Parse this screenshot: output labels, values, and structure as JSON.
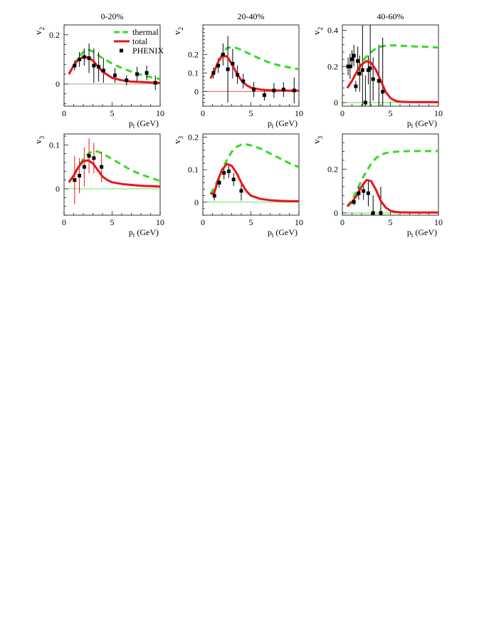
{
  "colors": {
    "thermal": "#33dd22",
    "total": "#e8141a",
    "phenix": "#000000",
    "zero_line": "#888888",
    "errbar_red": "#ee4444"
  },
  "legend": {
    "thermal": "thermal",
    "total": "total",
    "phenix": "PHENIX"
  },
  "chart_data": [
    {
      "type": "line",
      "title": "0-20%",
      "ylabel": "v2",
      "xlabel": "pt (GeV)",
      "xlim": [
        0,
        10
      ],
      "ylim": [
        -0.09,
        0.24
      ],
      "xticks": [
        0,
        5,
        10
      ],
      "yticks": [
        0,
        0.2
      ],
      "ytick_labels": [
        "0",
        "0.2"
      ],
      "zero_line_color": "#888888",
      "errbar_color": "#000000",
      "legend": true,
      "thermal": {
        "x": [
          0.5,
          1,
          1.5,
          2,
          2.5,
          3,
          4,
          5,
          6,
          7,
          8,
          9,
          10
        ],
        "y": [
          0.04,
          0.075,
          0.11,
          0.13,
          0.14,
          0.132,
          0.105,
          0.083,
          0.065,
          0.05,
          0.038,
          0.028,
          0.02
        ]
      },
      "total": {
        "x": [
          0.5,
          1,
          1.5,
          2,
          2.5,
          3,
          3.5,
          4,
          5,
          6,
          7,
          8,
          9,
          10
        ],
        "y": [
          0.04,
          0.075,
          0.1,
          0.11,
          0.108,
          0.095,
          0.072,
          0.05,
          0.025,
          0.015,
          0.01,
          0.008,
          0.006,
          0.005
        ]
      },
      "phenix": {
        "x": [
          1.1,
          1.6,
          2.1,
          2.6,
          3.1,
          3.6,
          4.1,
          5.3,
          6.5,
          7.6,
          8.6,
          9.5
        ],
        "y": [
          0.075,
          0.1,
          0.11,
          0.105,
          0.075,
          0.07,
          0.055,
          0.035,
          0.015,
          0.04,
          0.045,
          0.005
        ],
        "err": [
          0.02,
          0.03,
          0.035,
          0.06,
          0.07,
          0.06,
          0.05,
          0.03,
          0.02,
          0.03,
          0.03,
          0.03
        ]
      }
    },
    {
      "type": "line",
      "title": "20-40%",
      "ylabel": "v2",
      "xlabel": "pt (GeV)",
      "xlim": [
        0,
        10
      ],
      "ylim": [
        -0.08,
        0.36
      ],
      "xticks": [
        0,
        5,
        10
      ],
      "yticks": [
        0,
        0.1,
        0.2
      ],
      "ytick_labels": [
        "0",
        "0.1",
        "0.2"
      ],
      "zero_line_color": "#e8141a",
      "errbar_color": "#000000",
      "legend": false,
      "thermal": {
        "x": [
          0.8,
          1.2,
          1.6,
          2,
          2.5,
          3,
          3.5,
          4,
          5,
          6,
          7,
          8,
          9,
          10
        ],
        "y": [
          0.07,
          0.11,
          0.16,
          0.2,
          0.235,
          0.24,
          0.235,
          0.225,
          0.2,
          0.175,
          0.155,
          0.14,
          0.13,
          0.12
        ]
      },
      "total": {
        "x": [
          0.8,
          1.2,
          1.6,
          2,
          2.5,
          3,
          3.5,
          4,
          4.5,
          5,
          6,
          7,
          8,
          9,
          10
        ],
        "y": [
          0.07,
          0.11,
          0.16,
          0.19,
          0.19,
          0.15,
          0.1,
          0.06,
          0.035,
          0.02,
          0.01,
          0.006,
          0.005,
          0.004,
          0.004
        ]
      },
      "phenix": {
        "x": [
          1.1,
          1.6,
          2.1,
          2.6,
          3.1,
          3.6,
          4.2,
          5.3,
          6.4,
          7.4,
          8.4,
          9.5
        ],
        "y": [
          0.1,
          0.14,
          0.2,
          0.12,
          0.15,
          0.09,
          0.055,
          0.01,
          -0.02,
          0.005,
          0.01,
          0.005
        ],
        "err": [
          0.03,
          0.04,
          0.06,
          0.18,
          0.08,
          0.05,
          0.04,
          0.04,
          0.03,
          0.04,
          0.04,
          0.07
        ]
      }
    },
    {
      "type": "line",
      "title": "40-60%",
      "ylabel": "v2",
      "xlabel": "pt (GeV)",
      "xlim": [
        0,
        10
      ],
      "ylim": [
        -0.02,
        0.43
      ],
      "xticks": [
        0,
        5,
        10
      ],
      "yticks": [
        0,
        0.2,
        0.4
      ],
      "ytick_labels": [
        "0",
        "0.2",
        "0.4"
      ],
      "zero_line_color": "#33dd22",
      "errbar_color": "#000000",
      "legend": false,
      "thermal": {
        "x": [
          0.5,
          1,
          1.5,
          2,
          2.5,
          3,
          3.5,
          4,
          4.5,
          5,
          6,
          7,
          8,
          9,
          10
        ],
        "y": [
          0.08,
          0.12,
          0.17,
          0.22,
          0.255,
          0.28,
          0.3,
          0.31,
          0.315,
          0.317,
          0.315,
          0.312,
          0.31,
          0.308,
          0.305
        ]
      },
      "total": {
        "x": [
          0.5,
          1,
          1.5,
          2,
          2.5,
          3,
          3.5,
          4,
          4.5,
          5,
          5.5,
          6,
          7,
          8,
          9,
          10
        ],
        "y": [
          0.08,
          0.12,
          0.17,
          0.21,
          0.23,
          0.22,
          0.18,
          0.12,
          0.06,
          0.025,
          0.01,
          0.005,
          0.003,
          0.002,
          0.002,
          0.002
        ]
      },
      "phenix": {
        "x": [
          0.6,
          0.8,
          1,
          1.2,
          1.4,
          1.6,
          1.8,
          2.1,
          2.4,
          2.7,
          2.9,
          3.2,
          3.8,
          4.2
        ],
        "y": [
          0.2,
          0.2,
          0.24,
          0.26,
          0.09,
          0.23,
          0.16,
          0.18,
          0.0,
          0.18,
          0.19,
          0.13,
          0.12,
          0.06
        ],
        "err": [
          0.05,
          0.07,
          0.05,
          0.06,
          0.03,
          0.08,
          0.1,
          0.25,
          0.15,
          0.08,
          0.25,
          0.12,
          0.2,
          0.3
        ]
      }
    },
    {
      "type": "line",
      "title": "",
      "ylabel": "v3",
      "xlabel": "pt (GeV)",
      "xlim": [
        0,
        10
      ],
      "ylim": [
        -0.06,
        0.125
      ],
      "xticks": [
        0,
        5,
        10
      ],
      "yticks": [
        0,
        0.1
      ],
      "ytick_labels": [
        "0",
        "0.1"
      ],
      "zero_line_color": "#33dd22",
      "errbar_color": "#e8141a",
      "legend": false,
      "thermal": {
        "x": [
          0.5,
          1,
          1.5,
          2,
          2.5,
          3,
          3.5,
          4,
          5,
          6,
          7,
          8,
          9,
          10
        ],
        "y": [
          0.015,
          0.03,
          0.05,
          0.068,
          0.08,
          0.086,
          0.085,
          0.08,
          0.068,
          0.055,
          0.042,
          0.033,
          0.025,
          0.018
        ]
      },
      "total": {
        "x": [
          0.5,
          1,
          1.5,
          2,
          2.5,
          3,
          3.5,
          4,
          4.5,
          5,
          6,
          7,
          8,
          9,
          10
        ],
        "y": [
          0.015,
          0.03,
          0.05,
          0.063,
          0.065,
          0.058,
          0.043,
          0.028,
          0.02,
          0.015,
          0.011,
          0.009,
          0.007,
          0.006,
          0.005
        ]
      },
      "phenix": {
        "x": [
          1.1,
          1.6,
          2.1,
          2.6,
          3.1,
          3.9
        ],
        "y": [
          0.02,
          0.03,
          0.05,
          0.075,
          0.07,
          0.05
        ],
        "err": [
          0.055,
          0.04,
          0.045,
          0.04,
          0.035,
          0.035
        ]
      }
    },
    {
      "type": "line",
      "title": "",
      "ylabel": "v3",
      "xlabel": "pt (GeV)",
      "xlim": [
        0,
        10
      ],
      "ylim": [
        -0.04,
        0.21
      ],
      "xticks": [
        0,
        5,
        10
      ],
      "yticks": [
        0,
        0.1,
        0.2
      ],
      "ytick_labels": [
        "0",
        "0.1",
        "0.2"
      ],
      "zero_line_color": "#33dd22",
      "errbar_color": "#000000",
      "legend": false,
      "thermal": {
        "x": [
          0.8,
          1.2,
          1.6,
          2,
          2.5,
          3,
          3.5,
          4,
          4.5,
          5,
          6,
          7,
          8,
          9,
          10
        ],
        "y": [
          0.025,
          0.045,
          0.07,
          0.1,
          0.13,
          0.155,
          0.17,
          0.177,
          0.178,
          0.175,
          0.165,
          0.15,
          0.135,
          0.12,
          0.108
        ]
      },
      "total": {
        "x": [
          0.8,
          1.2,
          1.6,
          2,
          2.5,
          3,
          3.5,
          4,
          4.5,
          5,
          6,
          7,
          8,
          9,
          10
        ],
        "y": [
          0.025,
          0.03,
          0.07,
          0.1,
          0.118,
          0.112,
          0.09,
          0.06,
          0.035,
          0.02,
          0.01,
          0.006,
          0.004,
          0.003,
          0.003
        ]
      },
      "phenix": {
        "x": [
          1.2,
          1.7,
          2.2,
          2.7,
          3.2,
          4.0
        ],
        "y": [
          0.02,
          0.06,
          0.09,
          0.095,
          0.07,
          0.035
        ],
        "err": [
          0.015,
          0.015,
          0.02,
          0.02,
          0.02,
          0.03
        ]
      }
    },
    {
      "type": "line",
      "title": "",
      "ylabel": "v3",
      "xlabel": "pt (GeV)",
      "xlim": [
        0,
        10
      ],
      "ylim": [
        -0.01,
        0.36
      ],
      "xticks": [
        0,
        5,
        10
      ],
      "yticks": [
        0,
        0.2
      ],
      "ytick_labels": [
        "0",
        "0.2"
      ],
      "zero_line_color": "#33dd22",
      "errbar_color": "#000000",
      "legend": false,
      "thermal": {
        "x": [
          0.5,
          1,
          1.5,
          2,
          2.5,
          3,
          3.5,
          4,
          4.5,
          5,
          6,
          7,
          8,
          9,
          10
        ],
        "y": [
          0.03,
          0.06,
          0.1,
          0.15,
          0.19,
          0.225,
          0.25,
          0.265,
          0.273,
          0.277,
          0.28,
          0.282,
          0.282,
          0.282,
          0.282
        ]
      },
      "total": {
        "x": [
          0.5,
          1,
          1.5,
          2,
          2.5,
          3,
          3.5,
          4,
          4.5,
          5,
          5.5,
          6,
          7,
          8,
          9,
          10
        ],
        "y": [
          0.03,
          0.05,
          0.08,
          0.12,
          0.15,
          0.145,
          0.105,
          0.055,
          0.025,
          0.01,
          0.005,
          0.003,
          0.002,
          0.002,
          0.002,
          0.002
        ]
      },
      "phenix": {
        "x": [
          1.2,
          1.7,
          2.2,
          2.7,
          3.2,
          4.0
        ],
        "y": [
          0.05,
          0.09,
          0.1,
          0.09,
          0.0,
          0.0
        ],
        "err": [
          0.015,
          0.03,
          0.04,
          0.06,
          0.08,
          0.12
        ]
      }
    }
  ]
}
